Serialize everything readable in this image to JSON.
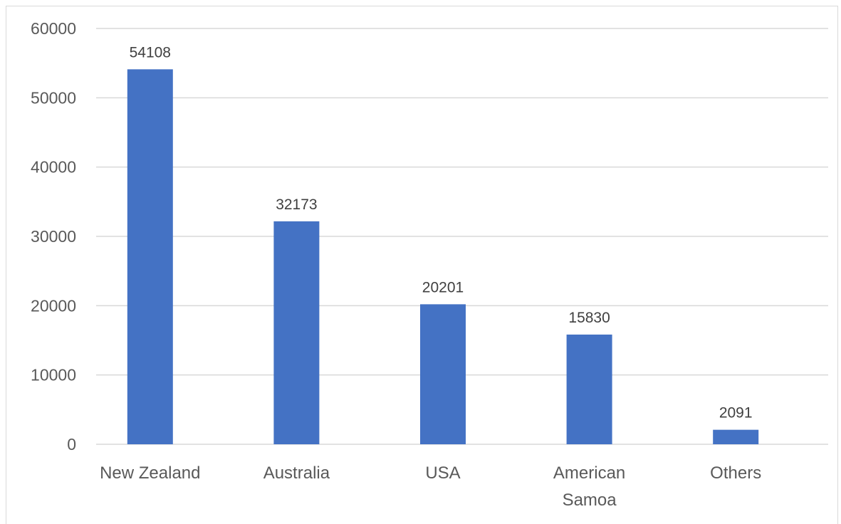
{
  "chart_data": {
    "type": "bar",
    "categories": [
      "New Zealand",
      "Australia",
      "USA",
      "American Samoa",
      "Others"
    ],
    "category_lines": [
      [
        "New Zealand"
      ],
      [
        "Australia"
      ],
      [
        "USA"
      ],
      [
        "American",
        "Samoa"
      ],
      [
        "Others"
      ]
    ],
    "values": [
      54108,
      32173,
      20201,
      15830,
      2091
    ],
    "data_labels": [
      "54108",
      "32173",
      "20201",
      "15830",
      "2091"
    ],
    "y_ticks": [
      0,
      10000,
      20000,
      30000,
      40000,
      50000,
      60000
    ],
    "ylim": [
      0,
      60000
    ],
    "grid": true,
    "legend": "none",
    "title": "",
    "xlabel": "",
    "ylabel": "",
    "bar_color": "#4472c4",
    "grid_color": "#d9d9d9"
  }
}
